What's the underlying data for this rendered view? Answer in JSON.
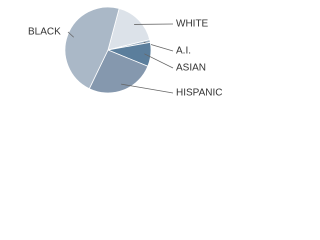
{
  "chart_data": {
    "type": "pie",
    "categories": [
      "WHITE",
      "A.I.",
      "ASIAN",
      "HISPANIC",
      "BLACK"
    ],
    "values": [
      17,
      1,
      9,
      26,
      47
    ],
    "colors": [
      "#dce2e9",
      "#9aadbf",
      "#5b7e9c",
      "#8598ae",
      "#aab8c7"
    ]
  }
}
